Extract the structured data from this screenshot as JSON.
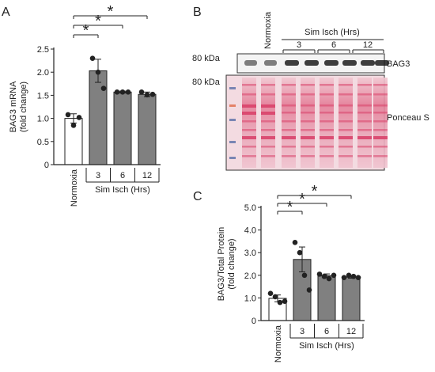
{
  "panels": {
    "a": {
      "letter": "A"
    },
    "b": {
      "letter": "B",
      "group_normoxia": "Normoxia",
      "group_sim": "Sim Isch (Hrs)",
      "time_labels": [
        "3",
        "6",
        "12"
      ],
      "marker_top": "80 kDa",
      "marker_bottom": "80 kDa",
      "band_label": "BAG3",
      "stain_label": "Ponceau S",
      "colors": {
        "ponceau": "#d9426a",
        "background": "#f3dbe1",
        "ladder": "#5a6fa8",
        "band": "#1c1c1c"
      }
    },
    "c": {
      "letter": "C"
    }
  },
  "significance_mark": "*",
  "chart_data": [
    {
      "panel": "A",
      "type": "bar",
      "categories": [
        "Normoxia",
        "3",
        "6",
        "12"
      ],
      "group_label": "Sim Isch (Hrs)",
      "values": [
        1.0,
        2.03,
        1.57,
        1.52
      ],
      "errors": [
        0.1,
        0.25,
        0.02,
        0.05
      ],
      "points": [
        [
          1.08,
          0.85,
          1.02
        ],
        [
          2.3,
          2.0,
          1.65
        ],
        [
          1.57,
          1.57,
          1.57
        ],
        [
          1.57,
          1.51,
          1.52
        ]
      ],
      "bar_colors": [
        "#ffffff",
        "#808080",
        "#808080",
        "#808080"
      ],
      "ylabel": "BAG3 mRNA (fold change)",
      "ylabel_lines": [
        "BAG3 mRNA",
        "(fold change)"
      ],
      "ylim": [
        0,
        2.5
      ],
      "yticks": [
        "0",
        "0.5",
        "1.0",
        "1.5",
        "2.0",
        "2.5"
      ],
      "comparisons": [
        [
          0,
          1
        ],
        [
          0,
          2
        ],
        [
          0,
          3
        ]
      ]
    },
    {
      "panel": "C",
      "type": "bar",
      "categories": [
        "Normoxia",
        "3",
        "6",
        "12"
      ],
      "group_label": "Sim Isch (Hrs)",
      "values": [
        0.98,
        2.7,
        1.98,
        1.92
      ],
      "errors": [
        0.15,
        0.55,
        0.08,
        0.05
      ],
      "points": [
        [
          1.2,
          1.05,
          0.8,
          0.85
        ],
        [
          3.45,
          3.0,
          2.0,
          1.35
        ],
        [
          2.05,
          1.95,
          1.85,
          2.0
        ],
        [
          1.9,
          2.0,
          1.95,
          1.9
        ]
      ],
      "bar_colors": [
        "#ffffff",
        "#808080",
        "#808080",
        "#808080"
      ],
      "ylabel": "BAG3/Total Protein (fold change)",
      "ylabel_lines": [
        "BAG3/Total Protein",
        "(fold change)"
      ],
      "ylim": [
        0,
        5.0
      ],
      "yticks": [
        "0",
        "1.0",
        "2.0",
        "3.0",
        "4.0",
        "5.0"
      ],
      "comparisons": [
        [
          0,
          1
        ],
        [
          0,
          2
        ],
        [
          0,
          3
        ]
      ]
    }
  ]
}
